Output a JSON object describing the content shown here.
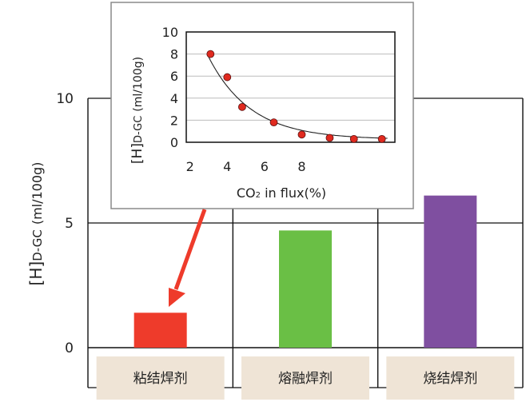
{
  "chart_data": [
    {
      "type": "bar",
      "categories": [
        "粘结焊剂",
        "熔融焊剂",
        "烧结焊剂"
      ],
      "values": [
        1.4,
        4.7,
        6.1
      ],
      "ylabel_main": "[H]",
      "ylabel_sub": "D-GC",
      "ylabel_unit": "(ml/100g)",
      "ylim": [
        0,
        10
      ],
      "yticks": [
        0,
        5,
        10
      ],
      "bar_colors": [
        "#ee3b2b",
        "#6abf45",
        "#7f4fa0"
      ],
      "category_box_color": "#efe4d6",
      "grid": true
    },
    {
      "type": "scatter",
      "x": [
        3.1,
        4.0,
        4.8,
        6.5,
        8.0,
        9.5,
        10.8,
        12.3
      ],
      "y": [
        8.0,
        5.9,
        3.2,
        1.8,
        0.7,
        0.4,
        0.3,
        0.3
      ],
      "xlabel_pre": "CO",
      "xlabel_sub": "2",
      "xlabel_post": " in flux(%)",
      "ylabel_main": "[H]",
      "ylabel_sub": "D-GC",
      "ylabel_unit": "(ml/100g)",
      "xlim": [
        1.8,
        13.0
      ],
      "ylim": [
        0,
        10
      ],
      "xticks": [
        2,
        4,
        6,
        8
      ],
      "yticks": [
        0,
        2,
        4,
        6,
        8,
        10
      ],
      "trend": "exponential-decay",
      "point_color": "#e02a1f",
      "grid": true
    }
  ]
}
